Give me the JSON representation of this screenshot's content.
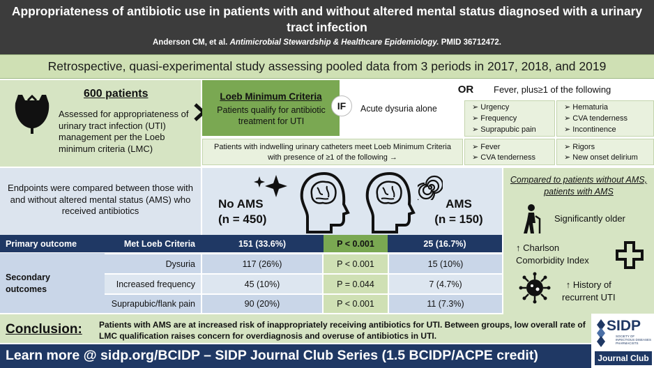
{
  "header": {
    "title": "Appropriateness of antibiotic use in patients with and without altered mental status diagnosed with a urinary tract infection",
    "citation_authors": "Anderson CM, et al.",
    "citation_journal": "Antimicrobial Stewardship & Healthcare Epidemiology.",
    "citation_pmid": "PMID 36712472."
  },
  "design": "Retrospective, quasi-experimental study assessing pooled data from 3 periods in 2017, 2018, and 2019",
  "intro": {
    "title": "600 patients",
    "text": "Assessed for appropriateness of urinary tract infection (UTI) management per the Loeb minimum criteria (LMC)"
  },
  "loeb": {
    "title": "Loeb Minimum Criteria",
    "text": "Patients qualify for antibiotic treatment for UTI",
    "if": "IF",
    "dysuria_alone": "Acute dysuria alone",
    "or": "OR",
    "fever_plus": "Fever, plus≥1 of the following",
    "col1": [
      "Urgency",
      "Frequency",
      "Suprapubic pain"
    ],
    "col2": [
      "Hematuria",
      "CVA tenderness",
      "Incontinence"
    ],
    "catheter_text": "Patients with indwelling urinary catheters meet Loeb Minimum Criteria with presence of  ≥1 of the following  →",
    "cath_col1": [
      "Fever",
      "CVA tenderness"
    ],
    "cath_col2": [
      "Rigors",
      "New onset delirium"
    ]
  },
  "endpoints": "Endpoints were compared between those with and without altered mental status (AMS) who received antibiotics",
  "groups": {
    "no_ams": "No AMS",
    "no_ams_n": "(n = 450)",
    "ams": "AMS",
    "ams_n": "(n = 150)"
  },
  "ams_panel": {
    "title": "Compared to patients without AMS, patients with AMS",
    "older": "Significantly older",
    "charlson_line1": "↑ Charlson",
    "charlson_line2": "Comorbidity Index",
    "history_line1": "↑ History of",
    "history_line2": "recurrent UTI"
  },
  "table": {
    "primary_label": "Primary outcome",
    "primary_measure": "Met Loeb Criteria",
    "primary_no_ams": "151 (33.6%)",
    "primary_p": "P < 0.001",
    "primary_ams": "25 (16.7%)",
    "secondary_label_1": "Secondary",
    "secondary_label_2": "outcomes",
    "rows": [
      {
        "measure": "Dysuria",
        "no_ams": "117 (26%)",
        "p": "P < 0.001",
        "ams": "15 (10%)"
      },
      {
        "measure": "Increased frequency",
        "no_ams": "45 (10%)",
        "p": "P = 0.044",
        "ams": "7 (4.7%)"
      },
      {
        "measure": "Suprapubic/flank pain",
        "no_ams": "90 (20%)",
        "p": "P < 0.001",
        "ams": "11 (7.3%)"
      }
    ]
  },
  "conclusion": {
    "label": "Conclusion:",
    "text": "Patients with AMS are  at increased risk of inappropriately receiving antibiotics for UTI. Between groups, low overall rate of LMC qualification raises concern for overdiagnosis and overuse of antibiotics in UTI."
  },
  "footer": "Learn more @ sidp.org/BCIDP  – SIDP Journal Club Series (1.5 BCIDP/ACPE credit)",
  "logo": {
    "name": "SIDP",
    "sub": "SOCIETY OF INFECTIOUS DISEASES PHARMACISTS",
    "journal_club": "Journal Club"
  },
  "colors": {
    "header_bg": "#3c3c3c",
    "navy": "#1f3864",
    "green": "#7aa852",
    "light_green": "#d6e4c3",
    "light_blue": "#dde6f0"
  }
}
